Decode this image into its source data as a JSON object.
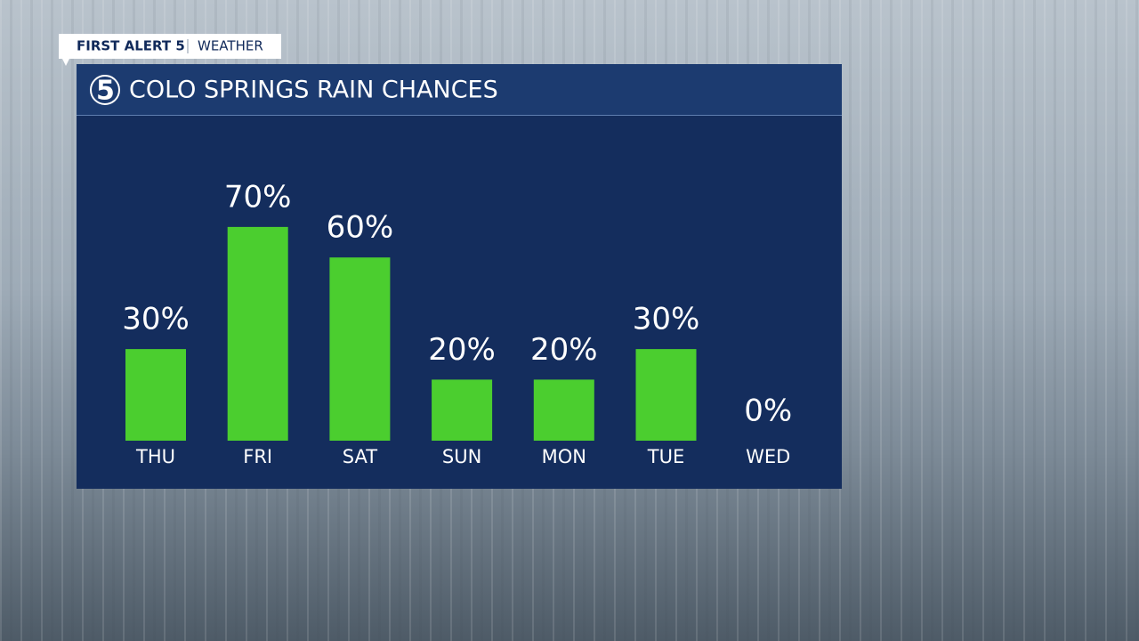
{
  "header": {
    "brand": "FIRST ALERT 5",
    "section": "WEATHER"
  },
  "logo": "5",
  "chart_data": {
    "type": "bar",
    "title": "COLO SPRINGS RAIN CHANCES",
    "categories": [
      "THU",
      "FRI",
      "SAT",
      "SUN",
      "MON",
      "TUE",
      "WED"
    ],
    "values": [
      30,
      70,
      60,
      20,
      20,
      30,
      0
    ],
    "value_labels": [
      "30%",
      "70%",
      "60%",
      "20%",
      "20%",
      "30%",
      "0%"
    ],
    "color": "#4bce2f"
  }
}
